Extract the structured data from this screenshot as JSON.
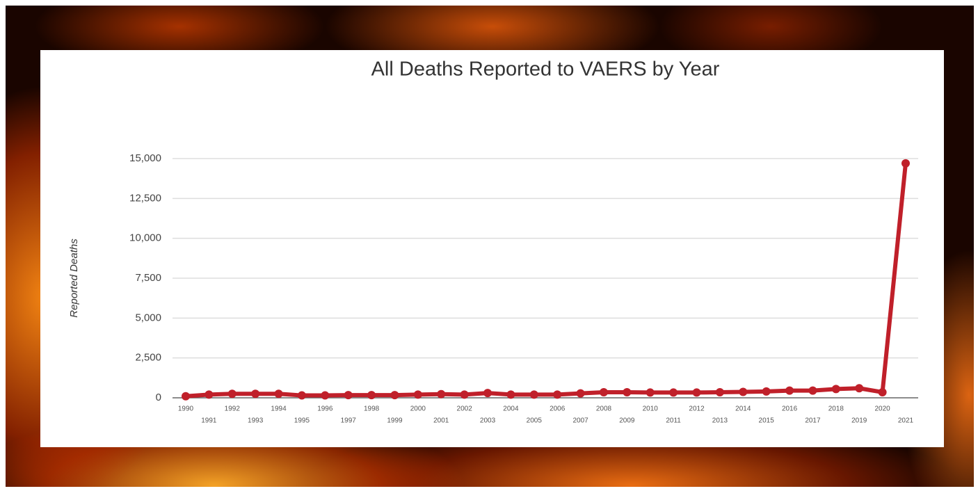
{
  "chart_data": {
    "type": "line",
    "title": "All Deaths Reported to VAERS by Year",
    "y_label": "Reported Deaths",
    "categories": [
      "1990",
      "1991",
      "1992",
      "1993",
      "1994",
      "1995",
      "1996",
      "1997",
      "1998",
      "1999",
      "2000",
      "2001",
      "2002",
      "2003",
      "2004",
      "2005",
      "2006",
      "2007",
      "2008",
      "2009",
      "2010",
      "2011",
      "2012",
      "2013",
      "2014",
      "2015",
      "2016",
      "2017",
      "2018",
      "2019",
      "2020",
      "2021"
    ],
    "series": [
      {
        "name": "Reported Deaths",
        "color": "#c0202a",
        "values": [
          100,
          200,
          250,
          250,
          250,
          150,
          150,
          170,
          170,
          170,
          200,
          230,
          200,
          300,
          200,
          200,
          200,
          280,
          350,
          350,
          330,
          330,
          330,
          350,
          370,
          400,
          450,
          450,
          550,
          600,
          350,
          14700
        ]
      }
    ],
    "ylim": [
      0,
      15000
    ],
    "yticks": [
      0,
      {
        "value": 2500,
        "label": "2,500"
      },
      {
        "value": 5000,
        "label": "5,000"
      },
      {
        "value": 7500,
        "label": "7,500"
      },
      {
        "value": 10000,
        "label": "10,000"
      },
      {
        "value": 12500,
        "label": "12,500"
      },
      {
        "value": 15000,
        "label": "15,000"
      }
    ],
    "grid": true
  }
}
